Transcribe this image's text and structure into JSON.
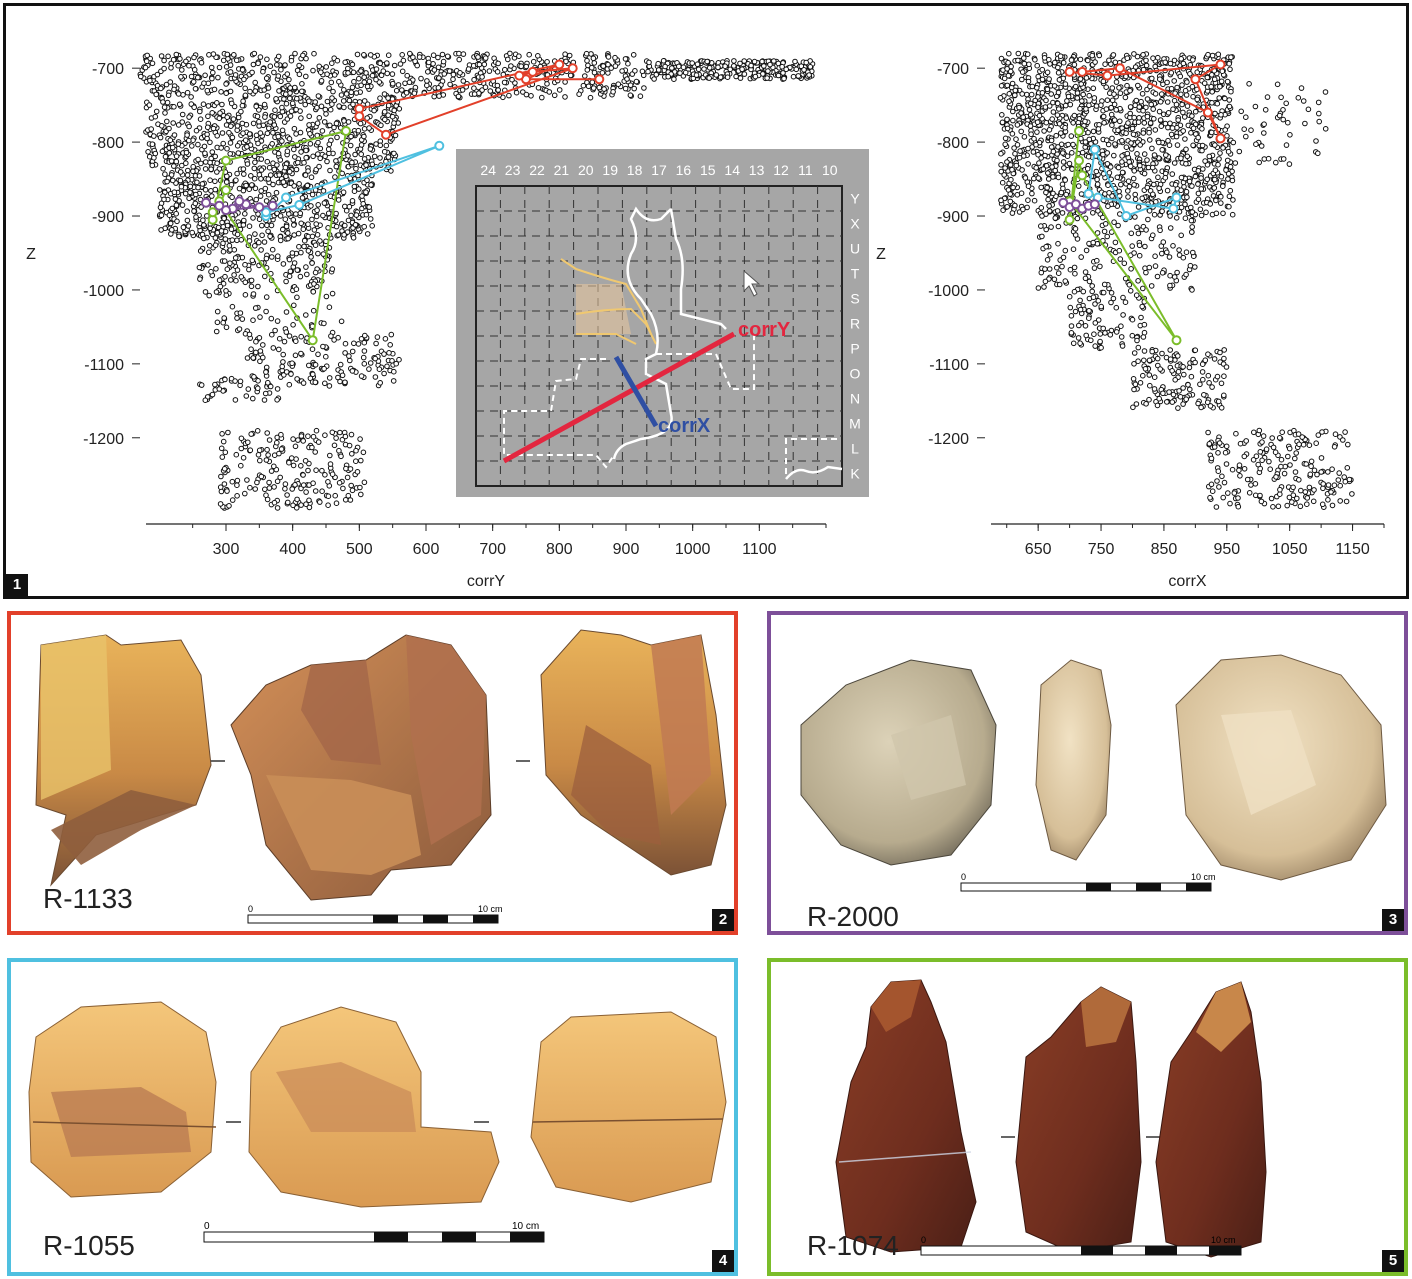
{
  "panel1": {
    "number": "1",
    "chart_data": [
      {
        "type": "scatter",
        "xlabel": "corrY",
        "ylabel": "Z",
        "xlim": [
          180,
          1200
        ],
        "ylim": [
          -1295,
          -670
        ],
        "x_ticks": [
          "300",
          "400",
          "500",
          "600",
          "700",
          "800",
          "900",
          "1000",
          "1100"
        ],
        "y_ticks": [
          "-700",
          "-800",
          "-900",
          "-1000",
          "-1100",
          "-1200"
        ],
        "clusters": [
          {
            "x": [
              170,
              930
            ],
            "y": [
              -680,
              -740
            ],
            "n": 650
          },
          {
            "x": [
              930,
              1180
            ],
            "y": [
              -690,
              -715
            ],
            "n": 260
          },
          {
            "x": [
              180,
              560
            ],
            "y": [
              -740,
              -840
            ],
            "n": 600
          },
          {
            "x": [
              200,
              520
            ],
            "y": [
              -840,
              -930
            ],
            "n": 500
          },
          {
            "x": [
              260,
              460
            ],
            "y": [
              -930,
              -1010
            ],
            "n": 170
          },
          {
            "x": [
              280,
              480
            ],
            "y": [
              -1020,
              -1060
            ],
            "n": 40
          },
          {
            "x": [
              330,
              560
            ],
            "y": [
              -1060,
              -1130
            ],
            "n": 150
          },
          {
            "x": [
              260,
              380
            ],
            "y": [
              -1120,
              -1150
            ],
            "n": 40
          },
          {
            "x": [
              290,
              510
            ],
            "y": [
              -1190,
              -1295
            ],
            "n": 200
          }
        ],
        "refits": [
          {
            "name": "R-1133",
            "color": "#e2402a",
            "x": [
              860,
              750,
              800,
              500,
              500,
              540,
              820,
              760,
              740
            ],
            "y": [
              -715,
              -715,
              -695,
              -755,
              -765,
              -790,
              -700,
              -705,
              -710
            ]
          },
          {
            "name": "R-1074",
            "color": "#7bbd2a",
            "x": [
              300,
              280,
              300,
              480,
              430,
              290,
              280
            ],
            "y": [
              -865,
              -905,
              -825,
              -785,
              -1068,
              -880,
              -895
            ]
          },
          {
            "name": "R-1055",
            "color": "#4fc0e0",
            "x": [
              360,
              390,
              620,
              410,
              360
            ],
            "y": [
              -900,
              -875,
              -805,
              -885,
              -895
            ]
          },
          {
            "name": "R-2000",
            "color": "#7d4f99",
            "x": [
              270,
              290,
              310,
              330,
              350,
              370,
              300,
              320
            ],
            "y": [
              -882,
              -886,
              -890,
              -884,
              -888,
              -886,
              -892,
              -880
            ]
          }
        ]
      },
      {
        "type": "scatter",
        "xlabel": "corrX",
        "ylabel": "Z",
        "xlim": [
          575,
          1200
        ],
        "ylim": [
          -1295,
          -670
        ],
        "x_ticks": [
          "650",
          "750",
          "850",
          "950",
          "1050",
          "1150"
        ],
        "y_ticks": [
          "-700",
          "-800",
          "-900",
          "-1000",
          "-1100",
          "-1200"
        ],
        "clusters": [
          {
            "x": [
              590,
              960
            ],
            "y": [
              -680,
              -780
            ],
            "n": 700
          },
          {
            "x": [
              590,
              960
            ],
            "y": [
              -780,
              -900
            ],
            "n": 700
          },
          {
            "x": [
              960,
              1110
            ],
            "y": [
              -720,
              -830
            ],
            "n": 50
          },
          {
            "x": [
              650,
              900
            ],
            "y": [
              -900,
              -1000
            ],
            "n": 170
          },
          {
            "x": [
              700,
              820
            ],
            "y": [
              -1000,
              -1080
            ],
            "n": 90
          },
          {
            "x": [
              800,
              950
            ],
            "y": [
              -1080,
              -1160
            ],
            "n": 140
          },
          {
            "x": [
              920,
              1150
            ],
            "y": [
              -1190,
              -1295
            ],
            "n": 200
          }
        ],
        "refits": [
          {
            "name": "R-1133",
            "color": "#e2402a",
            "x": [
              700,
              760,
              940,
              900,
              940,
              920,
              780,
              720
            ],
            "y": [
              -705,
              -710,
              -695,
              -715,
              -795,
              -760,
              -700,
              -705
            ]
          },
          {
            "name": "R-1074",
            "color": "#7bbd2a",
            "x": [
              715,
              700,
              715,
              720,
              870,
              700
            ],
            "y": [
              -785,
              -905,
              -825,
              -845,
              -1068,
              -880
            ]
          },
          {
            "name": "R-1055",
            "color": "#4fc0e0",
            "x": [
              730,
              740,
              790,
              870,
              865,
              745
            ],
            "y": [
              -870,
              -810,
              -900,
              -875,
              -890,
              -875
            ]
          },
          {
            "name": "R-2000",
            "color": "#7d4f99",
            "x": [
              690,
              700,
              710,
              720,
              730,
              740
            ],
            "y": [
              -882,
              -888,
              -884,
              -890,
              -886,
              -884
            ]
          }
        ]
      }
    ],
    "inset": {
      "columns": [
        "24",
        "23",
        "22",
        "21",
        "20",
        "19",
        "18",
        "17",
        "16",
        "15",
        "14",
        "13",
        "12",
        "11",
        "10"
      ],
      "rows": [
        "Y",
        "X",
        "U",
        "T",
        "S",
        "R",
        "P",
        "O",
        "N",
        "M",
        "L",
        "K"
      ],
      "corrY_label": "corrY",
      "corrX_label": "corrX",
      "corrY_color": "#e3263f",
      "corrX_color": "#2f4fa3"
    }
  },
  "panel2": {
    "label": "R-1133",
    "number": "2",
    "scale_label": "10 cm",
    "color": "#e2402a"
  },
  "panel3": {
    "label": "R-2000",
    "number": "3",
    "scale_label": "10 cm",
    "color": "#7d4f99"
  },
  "panel4": {
    "label": "R-1055",
    "number": "4",
    "scale_label": "10 cm",
    "color": "#4fc0e0"
  },
  "panel5": {
    "label": "R-1074",
    "number": "5",
    "scale_label": "10 cm",
    "color": "#7bbd2a"
  }
}
